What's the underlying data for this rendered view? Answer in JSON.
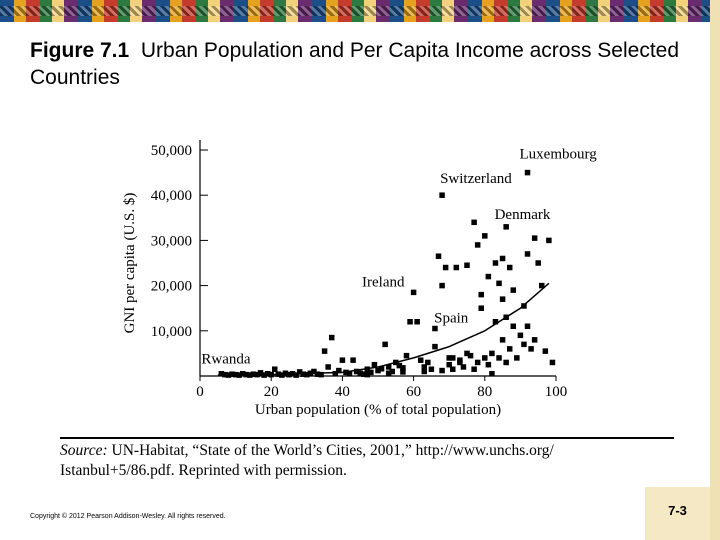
{
  "title": {
    "figure_label": "Figure 7.1",
    "text": "Urban Population and Per Capita Income across Selected Countries"
  },
  "source": {
    "label": "Source:",
    "line1": "UN-Habitat, “State of the World’s Cities, 2001,” http://www.unchs.org/",
    "line2": "Istanbul+5/86.pdf. Reprinted with permission."
  },
  "footer": {
    "copyright": "Copyright © 2012 Pearson Addison-Wesley. All rights reserved.",
    "slide_number": "7-3"
  },
  "colors": {
    "marker": "#000000",
    "banner_accent": "#1c4f88",
    "slide_number_bg": "#f4e9c4"
  },
  "chart_data": {
    "type": "scatter",
    "xlabel": "Urban population (% of total population)",
    "ylabel": "GNI per capita (U.S. $)",
    "xlim": [
      0,
      100
    ],
    "ylim": [
      0,
      50000
    ],
    "xticks": [
      0,
      20,
      40,
      60,
      80,
      100
    ],
    "yticks": [
      10000,
      20000,
      30000,
      40000,
      50000
    ],
    "xtick_labels": [
      "0",
      "20",
      "40",
      "60",
      "80",
      "100"
    ],
    "ytick_labels": [
      "10,000",
      "20,000",
      "30,000",
      "40,000",
      "50,000"
    ],
    "grid": false,
    "legend": "none",
    "annotations": [
      {
        "text": "Luxembourg",
        "x": 92,
        "y": 45000
      },
      {
        "text": "Switzerland",
        "x": 68,
        "y": 40000
      },
      {
        "text": "Denmark",
        "x": 85,
        "y": 33000
      },
      {
        "text": "Ireland",
        "x": 59,
        "y": 18500
      },
      {
        "text": "Spain",
        "x": 77,
        "y": 14000
      },
      {
        "text": "Rwanda",
        "x": 6,
        "y": 500
      }
    ],
    "trend": {
      "type": "curve",
      "x": [
        5,
        20,
        40,
        50,
        60,
        70,
        80,
        90,
        98
      ],
      "y": [
        200,
        300,
        800,
        2000,
        4000,
        6500,
        10000,
        15000,
        20500
      ]
    },
    "points": [
      [
        6,
        500
      ],
      [
        7,
        300
      ],
      [
        8,
        200
      ],
      [
        9,
        400
      ],
      [
        10,
        300
      ],
      [
        11,
        200
      ],
      [
        12,
        500
      ],
      [
        13,
        300
      ],
      [
        14,
        200
      ],
      [
        15,
        400
      ],
      [
        16,
        300
      ],
      [
        17,
        700
      ],
      [
        18,
        200
      ],
      [
        19,
        500
      ],
      [
        20,
        300
      ],
      [
        21,
        1500
      ],
      [
        22,
        400
      ],
      [
        23,
        200
      ],
      [
        24,
        600
      ],
      [
        25,
        300
      ],
      [
        26,
        500
      ],
      [
        27,
        200
      ],
      [
        28,
        900
      ],
      [
        29,
        400
      ],
      [
        30,
        300
      ],
      [
        31,
        600
      ],
      [
        32,
        1000
      ],
      [
        33,
        400
      ],
      [
        34,
        300
      ],
      [
        35,
        5500
      ],
      [
        36,
        2000
      ],
      [
        37,
        8500
      ],
      [
        38,
        500
      ],
      [
        39,
        1200
      ],
      [
        40,
        3500
      ],
      [
        41,
        800
      ],
      [
        42,
        500
      ],
      [
        43,
        3500
      ],
      [
        44,
        1000
      ],
      [
        45,
        600
      ],
      [
        46,
        400
      ],
      [
        47,
        1500
      ],
      [
        48,
        800
      ],
      [
        49,
        2500
      ],
      [
        50,
        1200
      ],
      [
        51,
        1600
      ],
      [
        52,
        7000
      ],
      [
        53,
        2000
      ],
      [
        54,
        1000
      ],
      [
        55,
        3000
      ],
      [
        56,
        2300
      ],
      [
        57,
        1800
      ],
      [
        58,
        4500
      ],
      [
        59,
        12000
      ],
      [
        60,
        18500
      ],
      [
        61,
        12000
      ],
      [
        62,
        3500
      ],
      [
        63,
        2000
      ],
      [
        64,
        3000
      ],
      [
        65,
        1500
      ],
      [
        66,
        10500
      ],
      [
        66,
        6500
      ],
      [
        67,
        26500
      ],
      [
        68,
        20000
      ],
      [
        68,
        1200
      ],
      [
        69,
        24000
      ],
      [
        70,
        4000
      ],
      [
        70,
        2500
      ],
      [
        71,
        1500
      ],
      [
        72,
        24000
      ],
      [
        73,
        3000
      ],
      [
        74,
        2000
      ],
      [
        75,
        24500
      ],
      [
        75,
        5000
      ],
      [
        76,
        4500
      ],
      [
        77,
        34000
      ],
      [
        77,
        1500
      ],
      [
        78,
        29000
      ],
      [
        78,
        3000
      ],
      [
        79,
        18000
      ],
      [
        79,
        15000
      ],
      [
        80,
        31000
      ],
      [
        80,
        4000
      ],
      [
        81,
        22000
      ],
      [
        81,
        2500
      ],
      [
        82,
        5000
      ],
      [
        82,
        500
      ],
      [
        83,
        25000
      ],
      [
        83,
        12000
      ],
      [
        84,
        20500
      ],
      [
        84,
        4000
      ],
      [
        85,
        26000
      ],
      [
        85,
        17000
      ],
      [
        85,
        8000
      ],
      [
        86,
        33000
      ],
      [
        86,
        13000
      ],
      [
        86,
        3000
      ],
      [
        87,
        6000
      ],
      [
        87,
        24000
      ],
      [
        88,
        19000
      ],
      [
        88,
        11000
      ],
      [
        89,
        4000
      ],
      [
        90,
        9000
      ],
      [
        91,
        15500
      ],
      [
        91,
        7000
      ],
      [
        92,
        11000
      ],
      [
        92,
        27000
      ],
      [
        93,
        6000
      ],
      [
        94,
        8000
      ],
      [
        95,
        25000
      ],
      [
        96,
        20000
      ],
      [
        97,
        5500
      ],
      [
        98,
        30000
      ],
      [
        99,
        3000
      ],
      [
        71,
        4000
      ],
      [
        73,
        3500
      ],
      [
        63,
        1000
      ],
      [
        57,
        900
      ],
      [
        53,
        600
      ],
      [
        47,
        300
      ],
      [
        68,
        40000
      ],
      [
        92,
        45000
      ],
      [
        94,
        30500
      ]
    ]
  }
}
